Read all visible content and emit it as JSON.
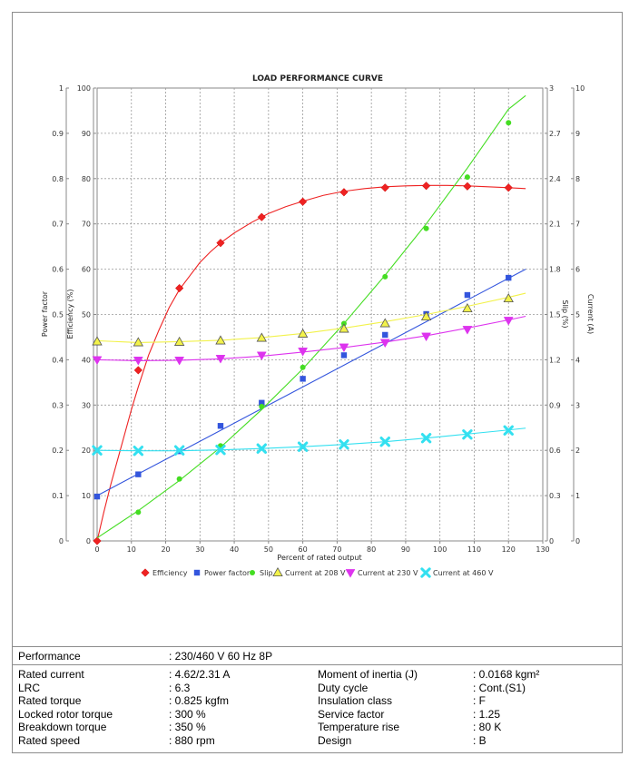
{
  "chart_data": {
    "type": "line",
    "title": "LOAD PERFORMANCE CURVE",
    "xlabel": "Percent of rated output",
    "xlim": [
      0,
      130
    ],
    "x_ticks": [
      "0",
      "10",
      "20",
      "30",
      "40",
      "50",
      "60",
      "70",
      "80",
      "90",
      "100",
      "110",
      "120",
      "130"
    ],
    "axes": {
      "power_factor": {
        "label": "Power factor",
        "range": [
          0,
          1
        ],
        "ticks": [
          "0",
          "0.1",
          "0.2",
          "0.3",
          "0.4",
          "0.5",
          "0.6",
          "0.7",
          "0.8",
          "0.9",
          "1"
        ]
      },
      "efficiency": {
        "label": "Efficiency (%)",
        "range": [
          0,
          100
        ],
        "ticks": [
          "0",
          "10",
          "20",
          "30",
          "40",
          "50",
          "60",
          "70",
          "80",
          "90",
          "100"
        ]
      },
      "slip": {
        "label": "Slip (%)",
        "range": [
          0,
          3
        ],
        "ticks": [
          "0",
          "0.3",
          "0.6",
          "0.9",
          "1.2",
          "1.5",
          "1.8",
          "2.1",
          "2.4",
          "2.7",
          "3"
        ]
      },
      "current": {
        "label": "Current (A)",
        "range": [
          0,
          10
        ],
        "ticks": [
          "0",
          "1",
          "2",
          "3",
          "4",
          "5",
          "6",
          "7",
          "8",
          "9",
          "10"
        ]
      }
    },
    "series": [
      {
        "name": "Efficiency",
        "axis": "efficiency",
        "color": "#ee2222",
        "marker": "diamond",
        "x": [
          0,
          12,
          24,
          36,
          48,
          60,
          72,
          84,
          96,
          108,
          120
        ],
        "values": [
          0,
          37.7,
          55.8,
          65.8,
          71.5,
          74.9,
          77.0,
          78.0,
          78.4,
          78.3,
          78.0
        ],
        "curve_x": [
          0,
          2,
          4,
          6,
          8,
          10,
          12,
          15,
          18,
          21,
          24,
          27,
          30,
          33,
          36,
          40,
          45,
          50,
          55,
          60,
          66,
          72,
          78,
          84,
          90,
          96,
          102,
          108,
          114,
          120,
          125
        ],
        "curve_y": [
          0,
          6.5,
          12.5,
          18,
          23.5,
          29,
          34,
          41,
          46.5,
          51.5,
          55.5,
          58.5,
          61.5,
          63.8,
          65.8,
          68,
          70.3,
          72.3,
          73.8,
          75,
          76.3,
          77.2,
          77.8,
          78.2,
          78.4,
          78.5,
          78.5,
          78.4,
          78.2,
          78.0,
          77.8
        ]
      },
      {
        "name": "Power factor",
        "axis": "power_factor",
        "color": "#3355dd",
        "marker": "square",
        "x": [
          0,
          12,
          24,
          36,
          48,
          60,
          72,
          84,
          96,
          108,
          120
        ],
        "values": [
          0.098,
          0.147,
          0.198,
          0.254,
          0.305,
          0.358,
          0.41,
          0.455,
          0.501,
          0.543,
          0.581
        ],
        "curve_x": [
          0,
          125
        ],
        "curve_y": [
          0.1,
          0.6
        ]
      },
      {
        "name": "Slip",
        "axis": "slip",
        "color": "#44dd22",
        "marker": "circle",
        "x": [
          12,
          24,
          36,
          48,
          60,
          72,
          84,
          96,
          108,
          120
        ],
        "values": [
          0.19,
          0.41,
          0.63,
          0.89,
          1.15,
          1.44,
          1.75,
          2.07,
          2.41,
          2.77
        ],
        "curve_x": [
          0,
          12,
          24,
          36,
          48,
          60,
          72,
          84,
          96,
          108,
          120,
          125
        ],
        "curve_y": [
          0.02,
          0.2,
          0.4,
          0.62,
          0.87,
          1.14,
          1.44,
          1.76,
          2.1,
          2.47,
          2.86,
          2.95
        ]
      },
      {
        "name": "Current at 208 V",
        "axis": "current",
        "color": "#f2f24a",
        "marker": "triangle-up",
        "x": [
          0,
          12,
          24,
          36,
          48,
          60,
          72,
          84,
          96,
          108,
          120
        ],
        "values": [
          4.4,
          4.38,
          4.39,
          4.42,
          4.48,
          4.57,
          4.68,
          4.8,
          4.95,
          5.13,
          5.35
        ],
        "curve_x": [
          0,
          12,
          24,
          36,
          48,
          60,
          72,
          84,
          96,
          108,
          120,
          125
        ],
        "curve_y": [
          4.42,
          4.38,
          4.4,
          4.43,
          4.49,
          4.58,
          4.7,
          4.84,
          5.0,
          5.18,
          5.38,
          5.47
        ]
      },
      {
        "name": "Current at 230 V",
        "axis": "current",
        "color": "#dd33ee",
        "marker": "triangle-down",
        "x": [
          0,
          12,
          24,
          36,
          48,
          60,
          72,
          84,
          96,
          108,
          120
        ],
        "values": [
          4.0,
          3.99,
          3.99,
          4.03,
          4.1,
          4.19,
          4.28,
          4.38,
          4.52,
          4.67,
          4.87
        ],
        "curve_x": [
          0,
          12,
          24,
          36,
          48,
          60,
          72,
          84,
          96,
          108,
          120,
          125
        ],
        "curve_y": [
          4.0,
          3.98,
          3.99,
          4.02,
          4.08,
          4.17,
          4.27,
          4.39,
          4.53,
          4.7,
          4.88,
          4.96
        ]
      },
      {
        "name": "Current at 460 V",
        "axis": "current",
        "color": "#33e0f0",
        "marker": "x",
        "x": [
          0,
          12,
          24,
          36,
          48,
          60,
          72,
          84,
          96,
          108,
          120
        ],
        "values": [
          2.0,
          1.99,
          2.0,
          2.01,
          2.04,
          2.08,
          2.13,
          2.19,
          2.27,
          2.35,
          2.44
        ],
        "curve_x": [
          0,
          12,
          24,
          36,
          48,
          60,
          72,
          84,
          96,
          108,
          120,
          125
        ],
        "curve_y": [
          2.0,
          1.99,
          1.99,
          2.01,
          2.04,
          2.08,
          2.13,
          2.19,
          2.27,
          2.36,
          2.45,
          2.49
        ]
      }
    ]
  },
  "specs": {
    "performance": {
      "label": "Performance",
      "value": ": 230/460 V 60 Hz 8P"
    },
    "left": [
      {
        "label": "Rated current",
        "value": ": 4.62/2.31 A"
      },
      {
        "label": "LRC",
        "value": ": 6.3"
      },
      {
        "label": "Rated torque",
        "value": ": 0.825 kgfm"
      },
      {
        "label": "Locked rotor torque",
        "value": ": 300 %"
      },
      {
        "label": "Breakdown torque",
        "value": ": 350 %"
      },
      {
        "label": "Rated speed",
        "value": ": 880 rpm"
      }
    ],
    "right": [
      {
        "label": "Moment of inertia (J)",
        "value": ": 0.0168 kgm²"
      },
      {
        "label": "Duty cycle",
        "value": ": Cont.(S1)"
      },
      {
        "label": "Insulation class",
        "value": ": F"
      },
      {
        "label": "Service factor",
        "value": ": 1.25"
      },
      {
        "label": "Temperature rise",
        "value": ": 80 K"
      },
      {
        "label": "Design",
        "value": ": B"
      }
    ]
  }
}
